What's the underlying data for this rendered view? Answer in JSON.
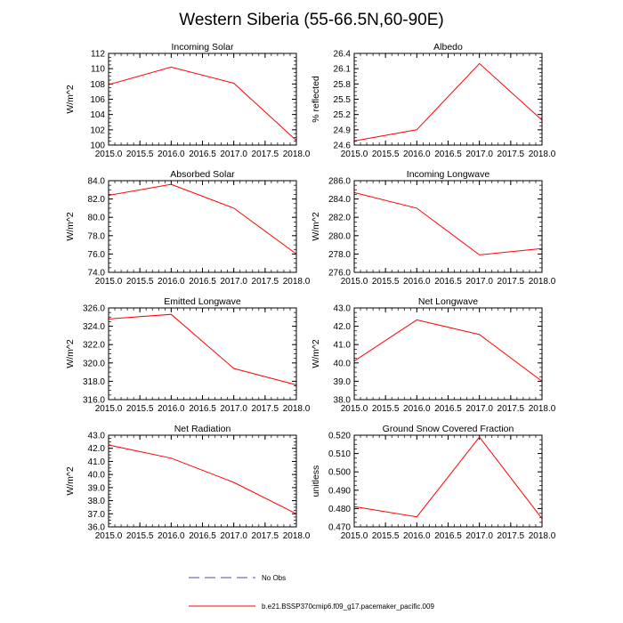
{
  "figure": {
    "title": "Western Siberia (55-66.5N,60-90E)",
    "line_color": "#ff0000",
    "obs_color": "#4b4bb4",
    "legend": {
      "obs_label": "No Obs",
      "model_label": "b.e21.BSSP370cmip6.f09_g17.pacemaker_pacific.009"
    }
  },
  "chart_data": [
    {
      "type": "line",
      "title": "Incoming Solar",
      "xlabel": "",
      "ylabel": "W/m^2",
      "x": [
        2015.0,
        2016.0,
        2017.0,
        2018.0
      ],
      "values": [
        107.9,
        110.2,
        108.1,
        100.6
      ],
      "xlim": [
        2015.0,
        2018.0
      ],
      "ylim": [
        100,
        112
      ],
      "xticks": [
        "2015.0",
        "2015.5",
        "2016.0",
        "2016.5",
        "2017.0",
        "2017.5",
        "2018.0"
      ],
      "yticks": [
        "100",
        "102",
        "104",
        "106",
        "108",
        "110",
        "112"
      ]
    },
    {
      "type": "line",
      "title": "Albedo",
      "xlabel": "",
      "ylabel": "% reflected",
      "x": [
        2015.0,
        2016.0,
        2017.0,
        2018.0
      ],
      "values": [
        24.68,
        24.9,
        26.2,
        25.09
      ],
      "xlim": [
        2015.0,
        2018.0
      ],
      "ylim": [
        24.6,
        26.4
      ],
      "xticks": [
        "2015.0",
        "2015.5",
        "2016.0",
        "2016.5",
        "2017.0",
        "2017.5",
        "2018.0"
      ],
      "yticks": [
        "24.6",
        "24.9",
        "25.2",
        "25.5",
        "25.8",
        "26.1",
        "26.4"
      ]
    },
    {
      "type": "line",
      "title": "Absorbed Solar",
      "xlabel": "",
      "ylabel": "W/m^2",
      "x": [
        2015.0,
        2016.0,
        2017.0,
        2018.0
      ],
      "values": [
        82.4,
        83.6,
        81.0,
        76.0
      ],
      "xlim": [
        2015.0,
        2018.0
      ],
      "ylim": [
        74,
        84
      ],
      "xticks": [
        "2015.0",
        "2015.5",
        "2016.0",
        "2016.5",
        "2017.0",
        "2017.5",
        "2018.0"
      ],
      "yticks": [
        "74.0",
        "76.0",
        "78.0",
        "80.0",
        "82.0",
        "84.0"
      ]
    },
    {
      "type": "line",
      "title": "Incoming Longwave",
      "xlabel": "",
      "ylabel": "W/m^2",
      "x": [
        2015.0,
        2016.0,
        2017.0,
        2018.0
      ],
      "values": [
        284.7,
        283.0,
        277.9,
        278.6
      ],
      "xlim": [
        2015.0,
        2018.0
      ],
      "ylim": [
        276,
        286
      ],
      "xticks": [
        "2015.0",
        "2015.5",
        "2016.0",
        "2016.5",
        "2017.0",
        "2017.5",
        "2018.0"
      ],
      "yticks": [
        "276.0",
        "278.0",
        "280.0",
        "282.0",
        "284.0",
        "286.0"
      ]
    },
    {
      "type": "line",
      "title": "Emitted Longwave",
      "xlabel": "",
      "ylabel": "W/m^2",
      "x": [
        2015.0,
        2016.0,
        2017.0,
        2018.0
      ],
      "values": [
        324.8,
        325.3,
        319.4,
        317.6
      ],
      "xlim": [
        2015.0,
        2018.0
      ],
      "ylim": [
        316,
        326
      ],
      "xticks": [
        "2015.0",
        "2015.5",
        "2016.0",
        "2016.5",
        "2017.0",
        "2017.5",
        "2018.0"
      ],
      "yticks": [
        "316.0",
        "318.0",
        "320.0",
        "322.0",
        "324.0",
        "326.0"
      ]
    },
    {
      "type": "line",
      "title": "Net Longwave",
      "xlabel": "",
      "ylabel": "W/m^2",
      "x": [
        2015.0,
        2016.0,
        2017.0,
        2018.0
      ],
      "values": [
        40.1,
        42.35,
        41.55,
        39.0
      ],
      "xlim": [
        2015.0,
        2018.0
      ],
      "ylim": [
        38,
        43
      ],
      "xticks": [
        "2015.0",
        "2015.5",
        "2016.0",
        "2016.5",
        "2017.0",
        "2017.5",
        "2018.0"
      ],
      "yticks": [
        "38.0",
        "39.0",
        "40.0",
        "41.0",
        "42.0",
        "43.0"
      ]
    },
    {
      "type": "line",
      "title": "Net Radiation",
      "xlabel": "",
      "ylabel": "W/m^2",
      "x": [
        2015.0,
        2016.0,
        2017.0,
        2018.0
      ],
      "values": [
        42.25,
        41.25,
        39.4,
        37.0
      ],
      "xlim": [
        2015.0,
        2018.0
      ],
      "ylim": [
        36,
        43
      ],
      "xticks": [
        "2015.0",
        "2015.5",
        "2016.0",
        "2016.5",
        "2017.0",
        "2017.5",
        "2018.0"
      ],
      "yticks": [
        "36.0",
        "37.0",
        "38.0",
        "39.0",
        "40.0",
        "41.0",
        "42.0",
        "43.0"
      ]
    },
    {
      "type": "line",
      "title": "Ground Snow Covered Fraction",
      "xlabel": "",
      "ylabel": "unitless",
      "x": [
        2015.0,
        2016.0,
        2017.0,
        2018.0
      ],
      "values": [
        0.481,
        0.4755,
        0.519,
        0.4745
      ],
      "xlim": [
        2015.0,
        2018.0
      ],
      "ylim": [
        0.47,
        0.52
      ],
      "xticks": [
        "2015.0",
        "2015.5",
        "2016.0",
        "2016.5",
        "2017.0",
        "2017.5",
        "2018.0"
      ],
      "yticks": [
        "0.470",
        "0.480",
        "0.490",
        "0.500",
        "0.510",
        "0.520"
      ]
    }
  ]
}
